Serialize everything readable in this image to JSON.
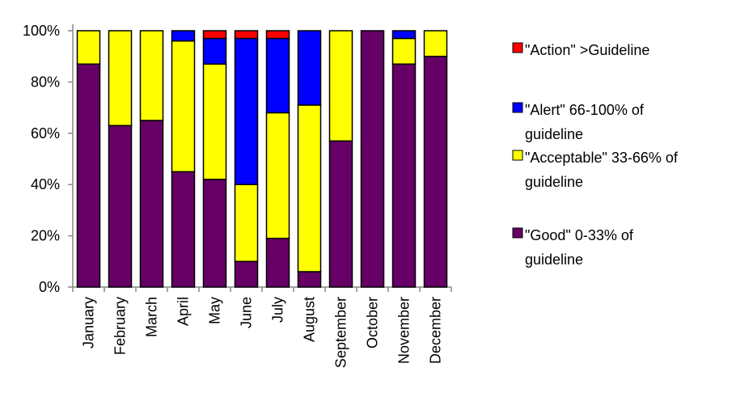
{
  "chart_data": {
    "type": "bar",
    "stacked": true,
    "percent_stacked": true,
    "categories": [
      "January",
      "February",
      "March",
      "April",
      "May",
      "June",
      "July",
      "August",
      "September",
      "October",
      "November",
      "December"
    ],
    "series": [
      {
        "name": "\"Good\" 0-33% of guideline",
        "legend_lines": [
          "\"Good\" 0-33% of",
          "guideline"
        ],
        "color": "#660066",
        "values": [
          87,
          63,
          65,
          45,
          42,
          10,
          19,
          6,
          57,
          100,
          87,
          90
        ]
      },
      {
        "name": "\"Acceptable\" 33-66% of guideline",
        "legend_lines": [
          "\"Acceptable\" 33-66% of",
          "guideline"
        ],
        "color": "#FFFF00",
        "values": [
          13,
          37,
          35,
          51,
          45,
          30,
          49,
          65,
          43,
          0,
          10,
          10
        ]
      },
      {
        "name": "\"Alert\" 66-100% of guideline",
        "legend_lines": [
          "\"Alert\" 66-100% of",
          "guideline"
        ],
        "color": "#0000FF",
        "values": [
          0,
          0,
          0,
          4,
          10,
          57,
          29,
          29,
          0,
          0,
          3,
          0
        ]
      },
      {
        "name": "\"Action\" >Guideline",
        "legend_lines": [
          "\"Action\" >Guideline"
        ],
        "color": "#FF0000",
        "values": [
          0,
          0,
          0,
          0,
          3,
          3,
          3,
          0,
          0,
          0,
          0,
          0
        ]
      }
    ],
    "y_ticks": [
      "0%",
      "20%",
      "40%",
      "60%",
      "80%",
      "100%"
    ],
    "ylim": [
      0,
      100
    ],
    "grid": false,
    "legend": "right"
  }
}
